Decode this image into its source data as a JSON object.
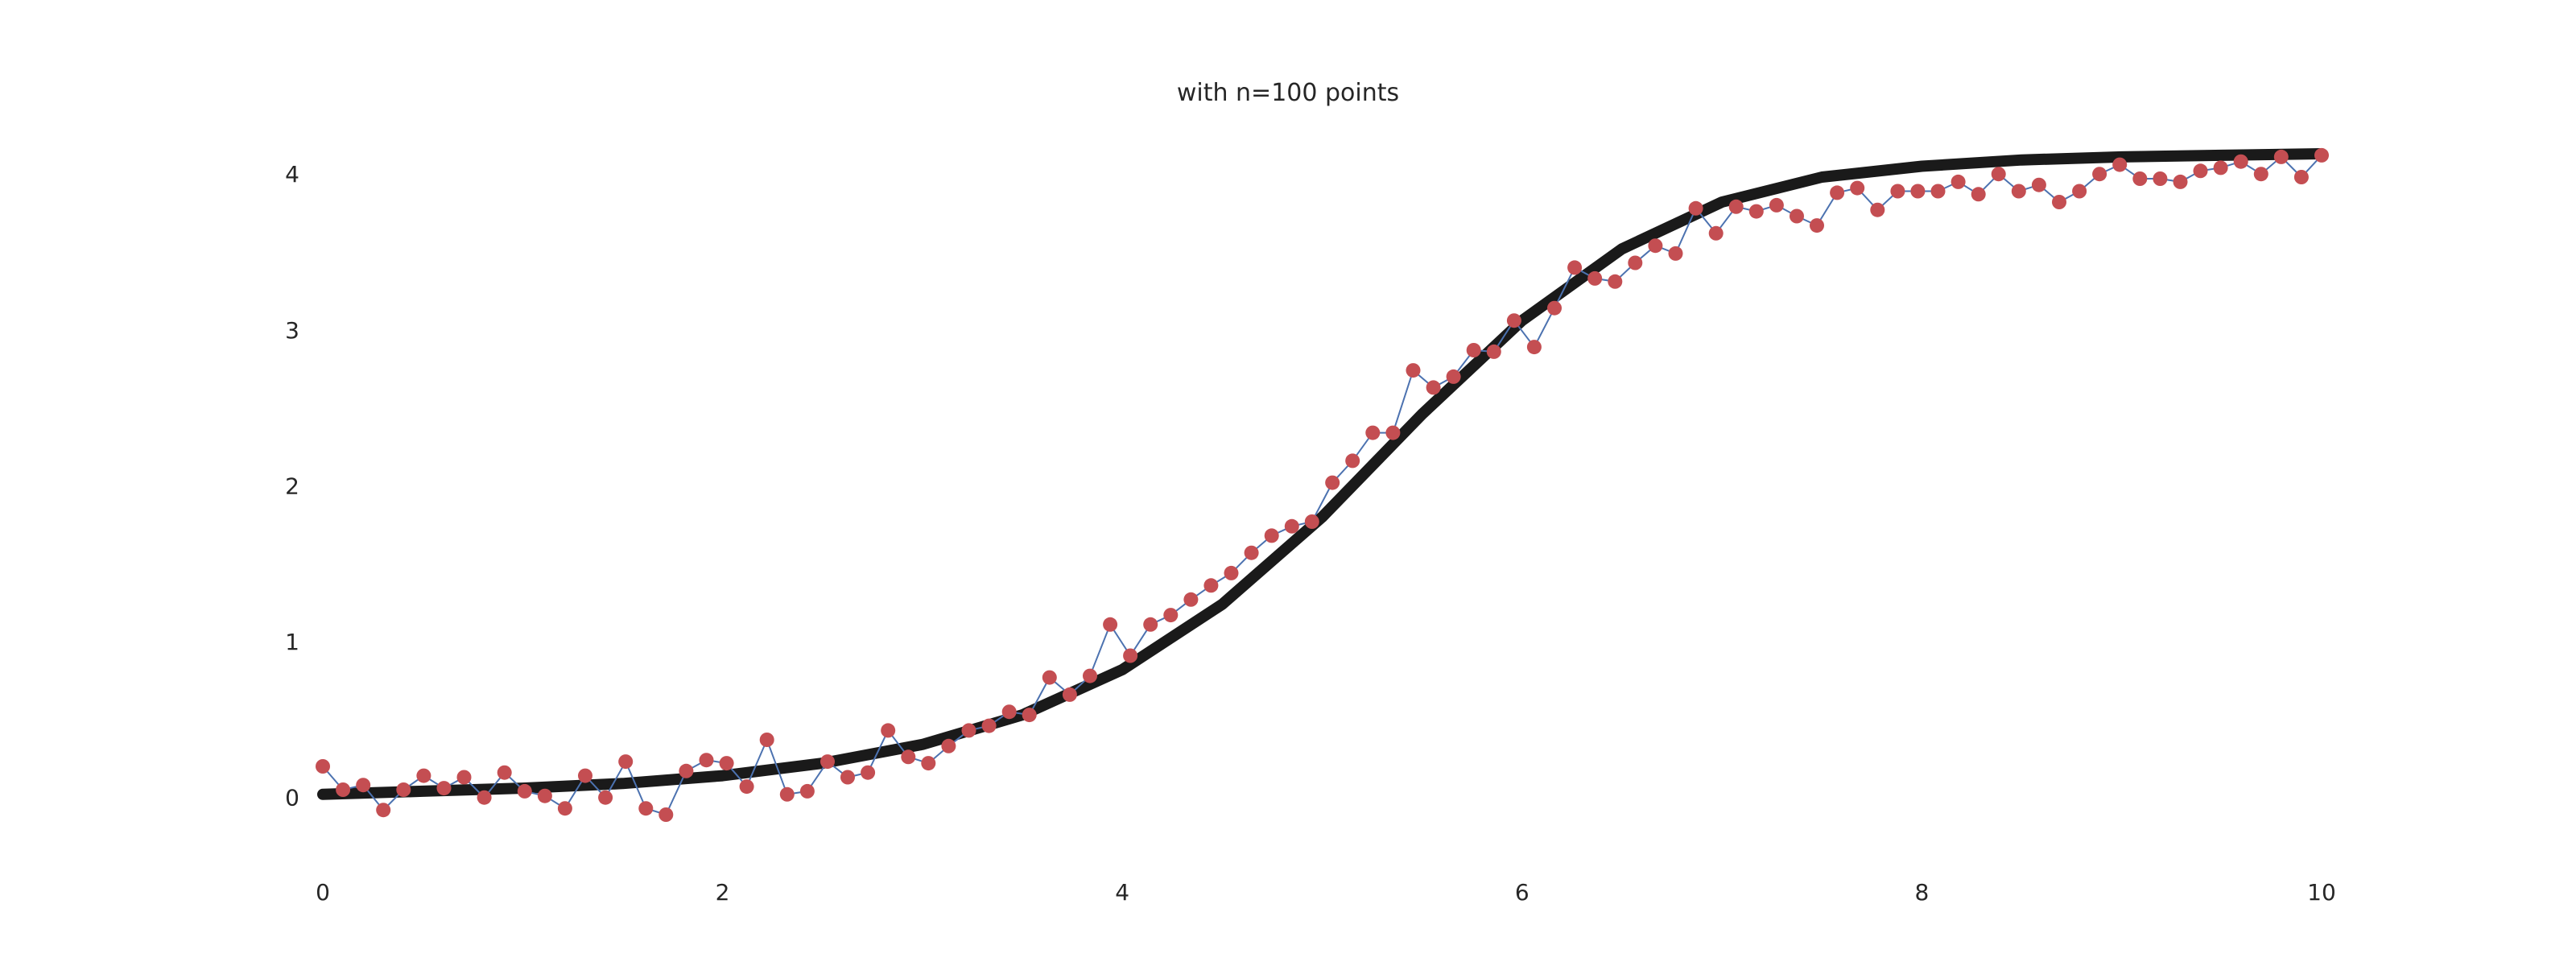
{
  "chart_data": {
    "type": "line",
    "title": "with n=100 points",
    "xlabel": "",
    "ylabel": "",
    "xlim": [
      0,
      10
    ],
    "ylim": [
      -0.42,
      4.6
    ],
    "grid": false,
    "x_ticks": [
      "0",
      "2",
      "4",
      "6",
      "8",
      "10"
    ],
    "y_ticks": [
      "0",
      "1",
      "2",
      "3",
      "4"
    ],
    "colors": {
      "curve": "#1a1a1a",
      "connector": "#4c72b0",
      "points": "#c44e52"
    },
    "curve": {
      "description_type": "logistic",
      "x": [
        0,
        0.5,
        1,
        1.5,
        2,
        2.5,
        3,
        3.5,
        4,
        4.5,
        5,
        5.5,
        6,
        6.5,
        7,
        7.5,
        8,
        8.5,
        9,
        9.5,
        10
      ],
      "y": [
        0.02,
        0.04,
        0.06,
        0.09,
        0.14,
        0.22,
        0.34,
        0.53,
        0.82,
        1.24,
        1.8,
        2.46,
        3.06,
        3.52,
        3.82,
        3.98,
        4.05,
        4.09,
        4.11,
        4.12,
        4.13
      ]
    },
    "series": [
      {
        "type": "scatter-line",
        "x": [
          0,
          0.101,
          0.202,
          0.303,
          0.404,
          0.505,
          0.606,
          0.707,
          0.808,
          0.909,
          1.01,
          1.111,
          1.212,
          1.313,
          1.414,
          1.515,
          1.616,
          1.717,
          1.818,
          1.919,
          2.02,
          2.121,
          2.222,
          2.323,
          2.424,
          2.525,
          2.626,
          2.727,
          2.828,
          2.929,
          3.03,
          3.131,
          3.232,
          3.333,
          3.434,
          3.535,
          3.636,
          3.737,
          3.838,
          3.939,
          4.04,
          4.141,
          4.242,
          4.343,
          4.444,
          4.545,
          4.646,
          4.747,
          4.848,
          4.949,
          5.051,
          5.152,
          5.253,
          5.354,
          5.455,
          5.556,
          5.657,
          5.758,
          5.859,
          5.96,
          6.061,
          6.162,
          6.263,
          6.364,
          6.465,
          6.566,
          6.667,
          6.768,
          6.869,
          6.97,
          7.071,
          7.172,
          7.273,
          7.374,
          7.475,
          7.576,
          7.677,
          7.778,
          7.879,
          7.98,
          8.081,
          8.182,
          8.283,
          8.384,
          8.485,
          8.586,
          8.687,
          8.788,
          8.889,
          8.99,
          9.091,
          9.192,
          9.293,
          9.394,
          9.495,
          9.596,
          9.697,
          9.798,
          9.899,
          10.0
        ],
        "y": [
          0.2,
          0.05,
          0.08,
          -0.08,
          0.05,
          0.14,
          0.06,
          0.13,
          0.0,
          0.16,
          0.04,
          0.01,
          -0.07,
          0.14,
          0.0,
          0.23,
          -0.07,
          -0.11,
          0.17,
          0.24,
          0.22,
          0.07,
          0.37,
          0.02,
          0.04,
          0.23,
          0.13,
          0.16,
          0.43,
          0.26,
          0.22,
          0.33,
          0.43,
          0.46,
          0.55,
          0.53,
          0.77,
          0.66,
          0.78,
          1.11,
          0.91,
          1.11,
          1.17,
          1.27,
          1.36,
          1.44,
          1.57,
          1.68,
          1.74,
          1.77,
          2.02,
          2.16,
          2.34,
          2.34,
          2.74,
          2.63,
          2.7,
          2.87,
          2.86,
          3.06,
          2.89,
          3.14,
          3.4,
          3.33,
          3.31,
          3.43,
          3.54,
          3.49,
          3.78,
          3.62,
          3.79,
          3.76,
          3.8,
          3.73,
          3.67,
          3.88,
          3.91,
          3.77,
          3.89,
          3.89,
          3.89,
          3.95,
          3.87,
          4.0,
          3.89,
          3.93,
          3.82,
          3.89,
          4.0,
          4.06,
          3.97,
          3.97,
          3.95,
          4.02,
          4.04,
          4.08,
          4.0,
          4.11,
          3.98,
          4.12
        ]
      }
    ]
  }
}
